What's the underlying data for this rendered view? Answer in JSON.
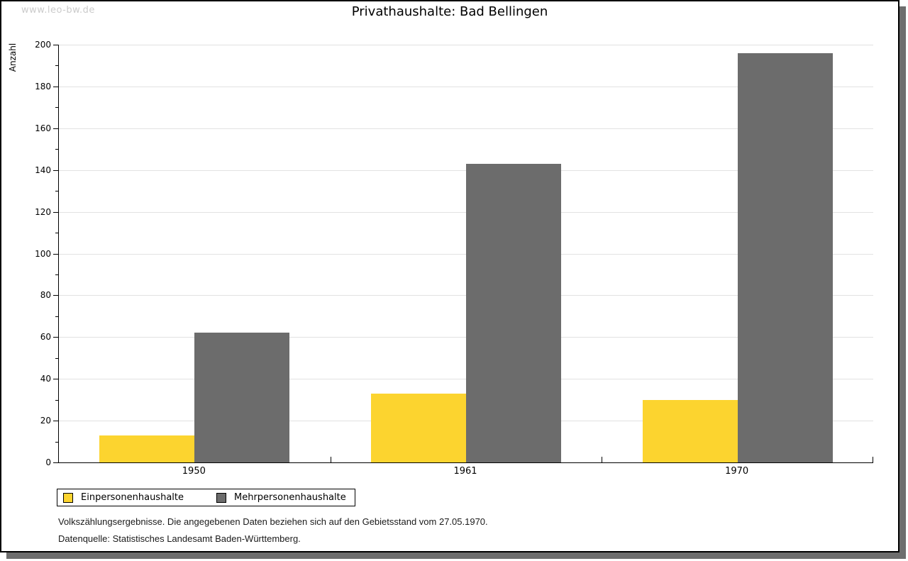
{
  "watermark": "www.leo-bw.de",
  "chart_data": {
    "type": "bar",
    "title": "Privathaushalte: Bad Bellingen",
    "xlabel": "",
    "ylabel": "Anzahl",
    "categories": [
      "1950",
      "1961",
      "1970"
    ],
    "series": [
      {
        "name": "Einpersonenhaushalte",
        "color": "#FCD42F",
        "values": [
          13,
          33,
          30
        ]
      },
      {
        "name": "Mehrpersonenhaushalte",
        "color": "#6C6C6C",
        "values": [
          62,
          143,
          196
        ]
      }
    ],
    "ylim": [
      0,
      200
    ],
    "ytick_step": 20,
    "yminor_step": 10,
    "grid": true,
    "legend_position": "bottom-left"
  },
  "footer": {
    "line1": "Volkszählungsergebnisse. Die angegebenen Daten beziehen sich auf den Gebietsstand vom 27.05.1970.",
    "line2": "Datenquelle: Statistisches Landesamt Baden-Württemberg."
  },
  "colors": {
    "grid": "#E2E2E2",
    "axis": "#000000",
    "watermark": "#CBCBCB",
    "shadow": "#6E6E6E",
    "background": "#FFFFFF"
  }
}
